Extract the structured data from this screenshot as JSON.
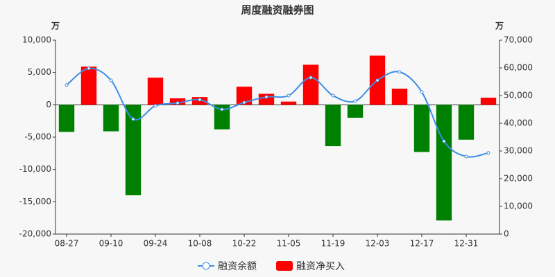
{
  "chart_data": {
    "type": "bar-line",
    "title": "周度融资融券图",
    "y_unit": "万",
    "y2_unit": "万",
    "categories": [
      "08-27",
      null,
      "09-10",
      null,
      "09-24",
      null,
      "10-08",
      null,
      "10-22",
      null,
      "11-05",
      null,
      "11-19",
      null,
      "12-03",
      null,
      "12-17",
      null,
      "12-31",
      null
    ],
    "series": [
      {
        "name": "融资余额",
        "type": "line",
        "axis": "y2",
        "color": "#3a8ee6",
        "values": [
          53800,
          59800,
          55500,
          41500,
          46300,
          47300,
          48500,
          45000,
          47500,
          49500,
          50000,
          56500,
          50000,
          48000,
          55500,
          58500,
          51300,
          33500,
          28000,
          29300
        ]
      },
      {
        "name": "融资净买入",
        "type": "bar",
        "color": "#ff0000",
        "negative_color": "#008000",
        "values": [
          -4200,
          5900,
          -4100,
          -14000,
          4200,
          1000,
          1200,
          -3800,
          2800,
          1700,
          500,
          6200,
          -6400,
          -2000,
          7600,
          2500,
          -7300,
          -17900,
          -5400,
          1100
        ]
      }
    ],
    "ylim": [
      -20000,
      10000
    ],
    "yticks": [
      {
        "value": -20000,
        "label": "-20,000"
      },
      {
        "value": -15000,
        "label": "-15,000"
      },
      {
        "value": -10000,
        "label": "-10,000"
      },
      {
        "value": -5000,
        "label": "-5,000"
      },
      0,
      {
        "value": 5000,
        "label": "5,000"
      },
      {
        "value": 10000,
        "label": "10,000"
      }
    ],
    "y2lim": [
      0,
      70000
    ],
    "y2ticks": [
      0,
      {
        "value": 10000,
        "label": "10,000"
      },
      {
        "value": 20000,
        "label": "20,000"
      },
      {
        "value": 30000,
        "label": "30,000"
      },
      {
        "value": 40000,
        "label": "40,000"
      },
      {
        "value": 50000,
        "label": "50,000"
      },
      {
        "value": 60000,
        "label": "60,000"
      },
      {
        "value": 70000,
        "label": "70,000"
      }
    ]
  }
}
